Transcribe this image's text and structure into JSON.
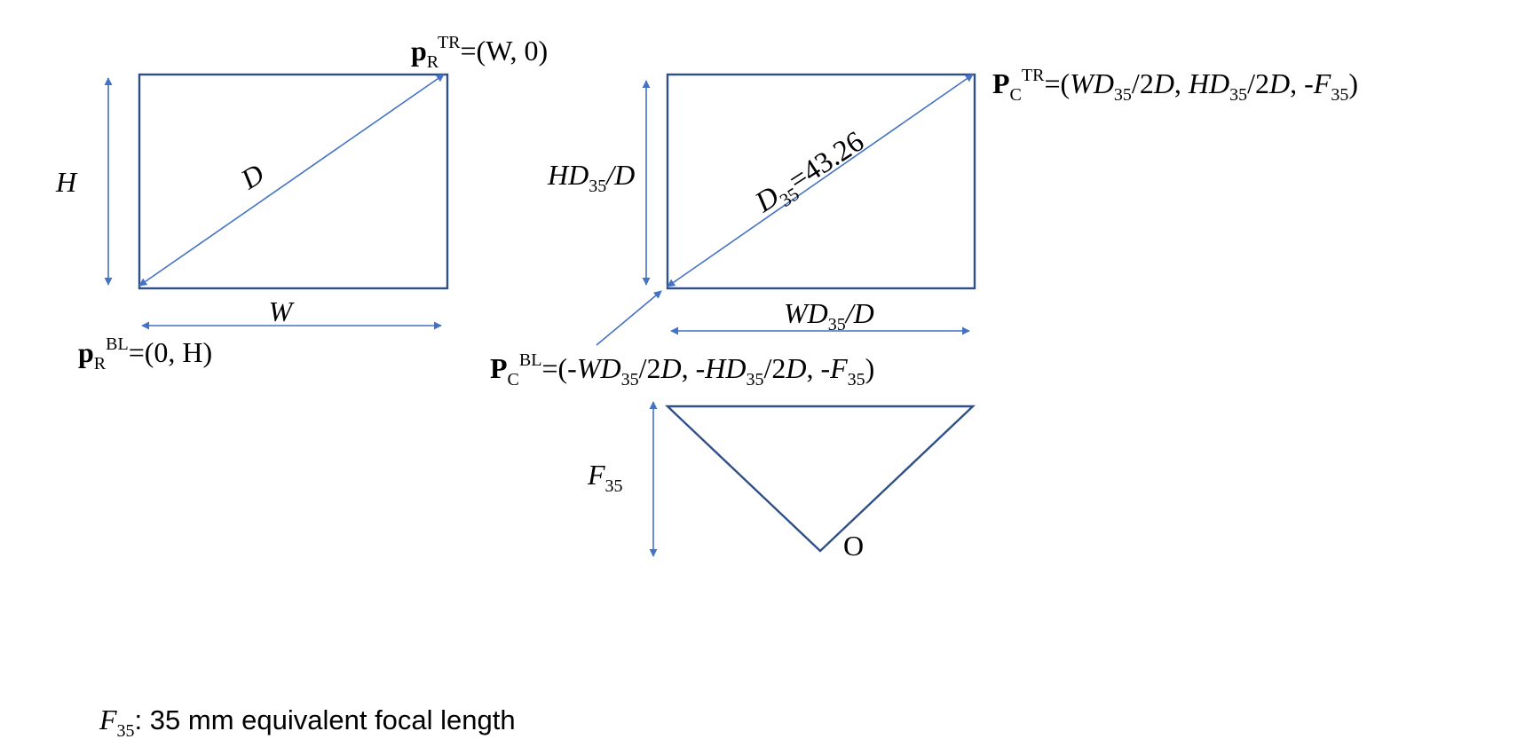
{
  "raster": {
    "dim_height": "H",
    "dim_width": "W",
    "diagonal": "D",
    "top_right": {
      "p": "p",
      "sub": "R",
      "sup": "TR",
      "value": "=(W, 0)"
    },
    "bottom_left": {
      "p": "p",
      "sub": "R",
      "sup": "BL",
      "value": "=(0, H)"
    }
  },
  "camera_sensor": {
    "dim_height": {
      "a": "HD",
      "sub": "35",
      "b": "/D"
    },
    "dim_width": {
      "a": "WD",
      "sub": "35",
      "b": "/D"
    },
    "diagonal": {
      "a": "D",
      "sub": "35",
      "b": "=43.26"
    },
    "top_right": {
      "p": "P",
      "sub": "C",
      "sup": "TR",
      "v1": "=(",
      "v2": "WD",
      "v3": "35",
      "v4": "/2",
      "v5": "D",
      "v6": ", ",
      "v7": "HD",
      "v8": "35",
      "v9": "/2",
      "v10": "D",
      "v11": ", -",
      "v12": "F",
      "v13": "35",
      "v14": ")"
    },
    "bottom_left": {
      "p": "P",
      "sub": "C",
      "sup": "BL",
      "v1": "=(-",
      "v2": "WD",
      "v3": "35",
      "v4": "/2",
      "v5": "D",
      "v6": ", -",
      "v7": "HD",
      "v8": "35",
      "v9": "/2",
      "v10": "D",
      "v11": ", -",
      "v12": "F",
      "v13": "35",
      "v14": ")"
    }
  },
  "frustum": {
    "focal_label": {
      "a": "F",
      "sub": "35"
    },
    "origin_label": "O"
  },
  "footnote": {
    "a": "F",
    "sub": "35",
    "text": ": 35 mm equivalent focal length"
  }
}
